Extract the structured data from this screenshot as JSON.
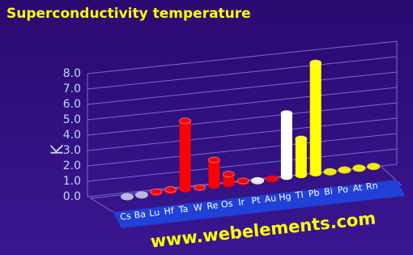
{
  "chart_data": {
    "type": "bar",
    "title": "Superconductivity temperature",
    "y_label": "K",
    "watermark": "www.webelements.com",
    "categories": [
      "Cs",
      "Ba",
      "Lu",
      "Hf",
      "Ta",
      "W",
      "Re",
      "Os",
      "Ir",
      "Pt",
      "Au",
      "Hg",
      "Tl",
      "Pb",
      "Bi",
      "Po",
      "At",
      "Rn"
    ],
    "values": [
      null,
      null,
      0.1,
      0.128,
      4.47,
      0.012,
      1.7,
      0.66,
      0.11,
      null,
      null,
      4.15,
      2.38,
      7.2,
      null,
      null,
      null,
      null
    ],
    "colors": [
      "#c8c8f0",
      "#c8c8f0",
      "#ff0000",
      "#ff0000",
      "#ff0000",
      "#ff0000",
      "#ff0000",
      "#ff0000",
      "#ff0000",
      "#ffffff",
      "#ff0000",
      "#ffffff",
      "#ffff00",
      "#ffff00",
      "#ffff00",
      "#ffff00",
      "#ffff00",
      "#ffff00"
    ],
    "ylim": [
      0,
      8
    ],
    "yticks": [
      {
        "value": 0,
        "label": "0.0"
      },
      {
        "value": 1,
        "label": "1.0"
      },
      {
        "value": 2,
        "label": "2.0"
      },
      {
        "value": 3,
        "label": "3.0"
      },
      {
        "value": 4,
        "label": "4.0"
      },
      {
        "value": 5,
        "label": "5.0"
      },
      {
        "value": 6,
        "label": "6.0"
      },
      {
        "value": 7,
        "label": "7.0"
      },
      {
        "value": 8,
        "label": "8.0"
      }
    ],
    "grid": true
  }
}
